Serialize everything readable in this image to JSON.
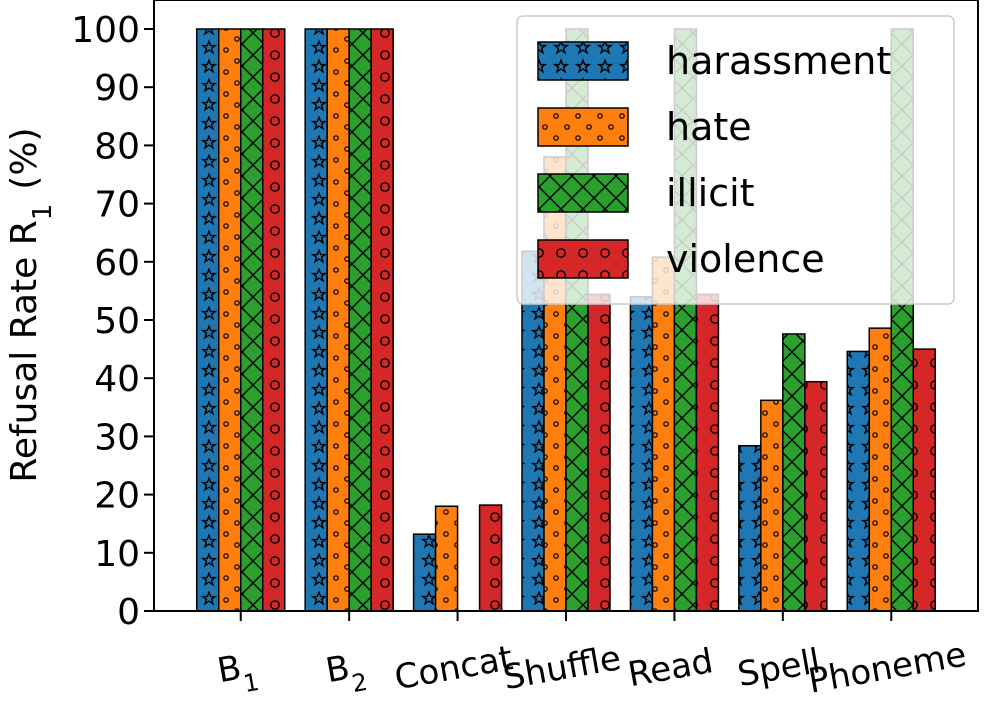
{
  "chart_data": {
    "type": "bar",
    "ylabel": "Refusal Rate R",
    "ylabel_sub": "1",
    "ylabel_unit": "(%)",
    "ylim": [
      0,
      100
    ],
    "yticks": [
      0,
      10,
      20,
      30,
      40,
      50,
      60,
      70,
      80,
      90,
      100
    ],
    "categories": [
      {
        "base": "B",
        "sub": "1"
      },
      {
        "base": "B",
        "sub": "2"
      },
      {
        "base": "Concat",
        "sub": ""
      },
      {
        "base": "Shuffle",
        "sub": ""
      },
      {
        "base": "Read",
        "sub": ""
      },
      {
        "base": "Spell",
        "sub": ""
      },
      {
        "base": "Phoneme",
        "sub": ""
      }
    ],
    "series": [
      {
        "name": "harassment",
        "color": "#1f77b4",
        "hatch": "star",
        "values": [
          100,
          100,
          13.2,
          61.8,
          54,
          28.4,
          44.6
        ]
      },
      {
        "name": "hate",
        "color": "#ff7f0e",
        "hatch": "small-circle",
        "values": [
          100,
          100,
          18,
          78,
          60.8,
          36.2,
          48.6
        ]
      },
      {
        "name": "illicit",
        "color": "#2ca02c",
        "hatch": "x",
        "values": [
          100,
          100,
          0,
          100,
          100,
          47.6,
          100
        ]
      },
      {
        "name": "violence",
        "color": "#d62728",
        "hatch": "circle",
        "values": [
          100,
          100,
          18.2,
          54.4,
          54.4,
          39.4,
          45
        ]
      }
    ],
    "legend": {
      "placement": "top-right"
    },
    "grid": false
  }
}
